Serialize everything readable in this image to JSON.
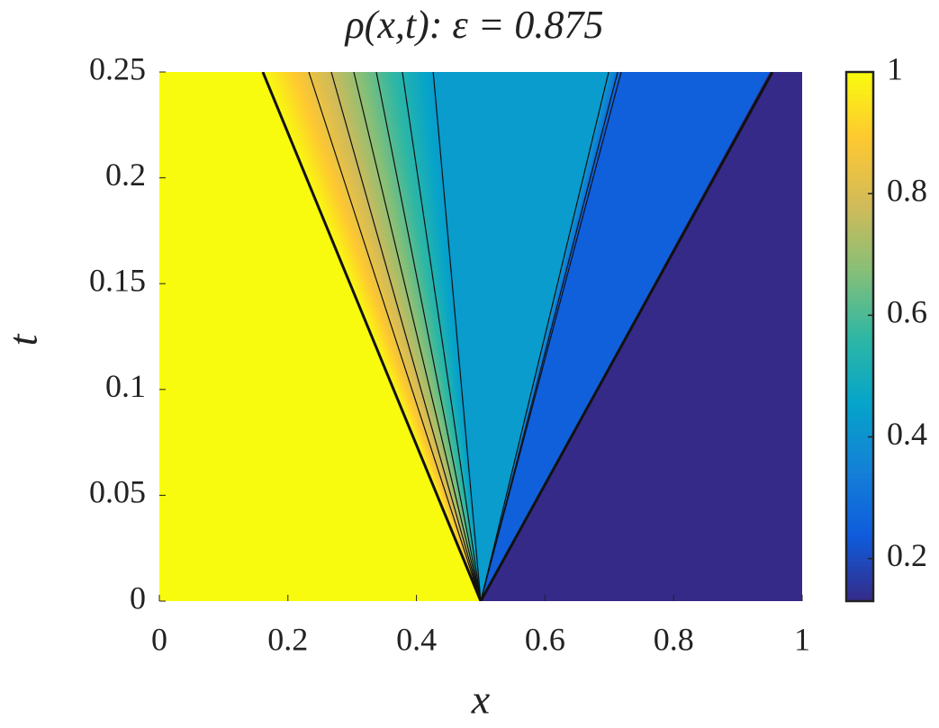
{
  "chart_data": {
    "type": "riemann-fan",
    "title": "ρ(x,t): ε = 0.875",
    "xlabel": "x",
    "ylabel": "t",
    "xlim": [
      0,
      1
    ],
    "ylim": [
      0,
      0.25
    ],
    "xticks": [
      0,
      0.2,
      0.4,
      0.6,
      0.8,
      1
    ],
    "yticks": [
      0,
      0.05,
      0.1,
      0.15,
      0.2,
      0.25
    ],
    "x0": 0.5,
    "states": [
      1,
      0.43,
      0.25,
      0.13
    ],
    "wave_speeds": [
      [
        -1.356,
        -0.296
      ],
      [
        0.796,
        0.874
      ],
      [
        1.815
      ]
    ],
    "contour_speeds": [
      -1.07,
      -0.93,
      -0.79,
      -0.65,
      -0.488,
      0.852
    ],
    "clim": [
      0.13,
      1
    ],
    "cticks": [
      0.2,
      0.4,
      0.6,
      0.8,
      1
    ],
    "colormap": "parula"
  }
}
